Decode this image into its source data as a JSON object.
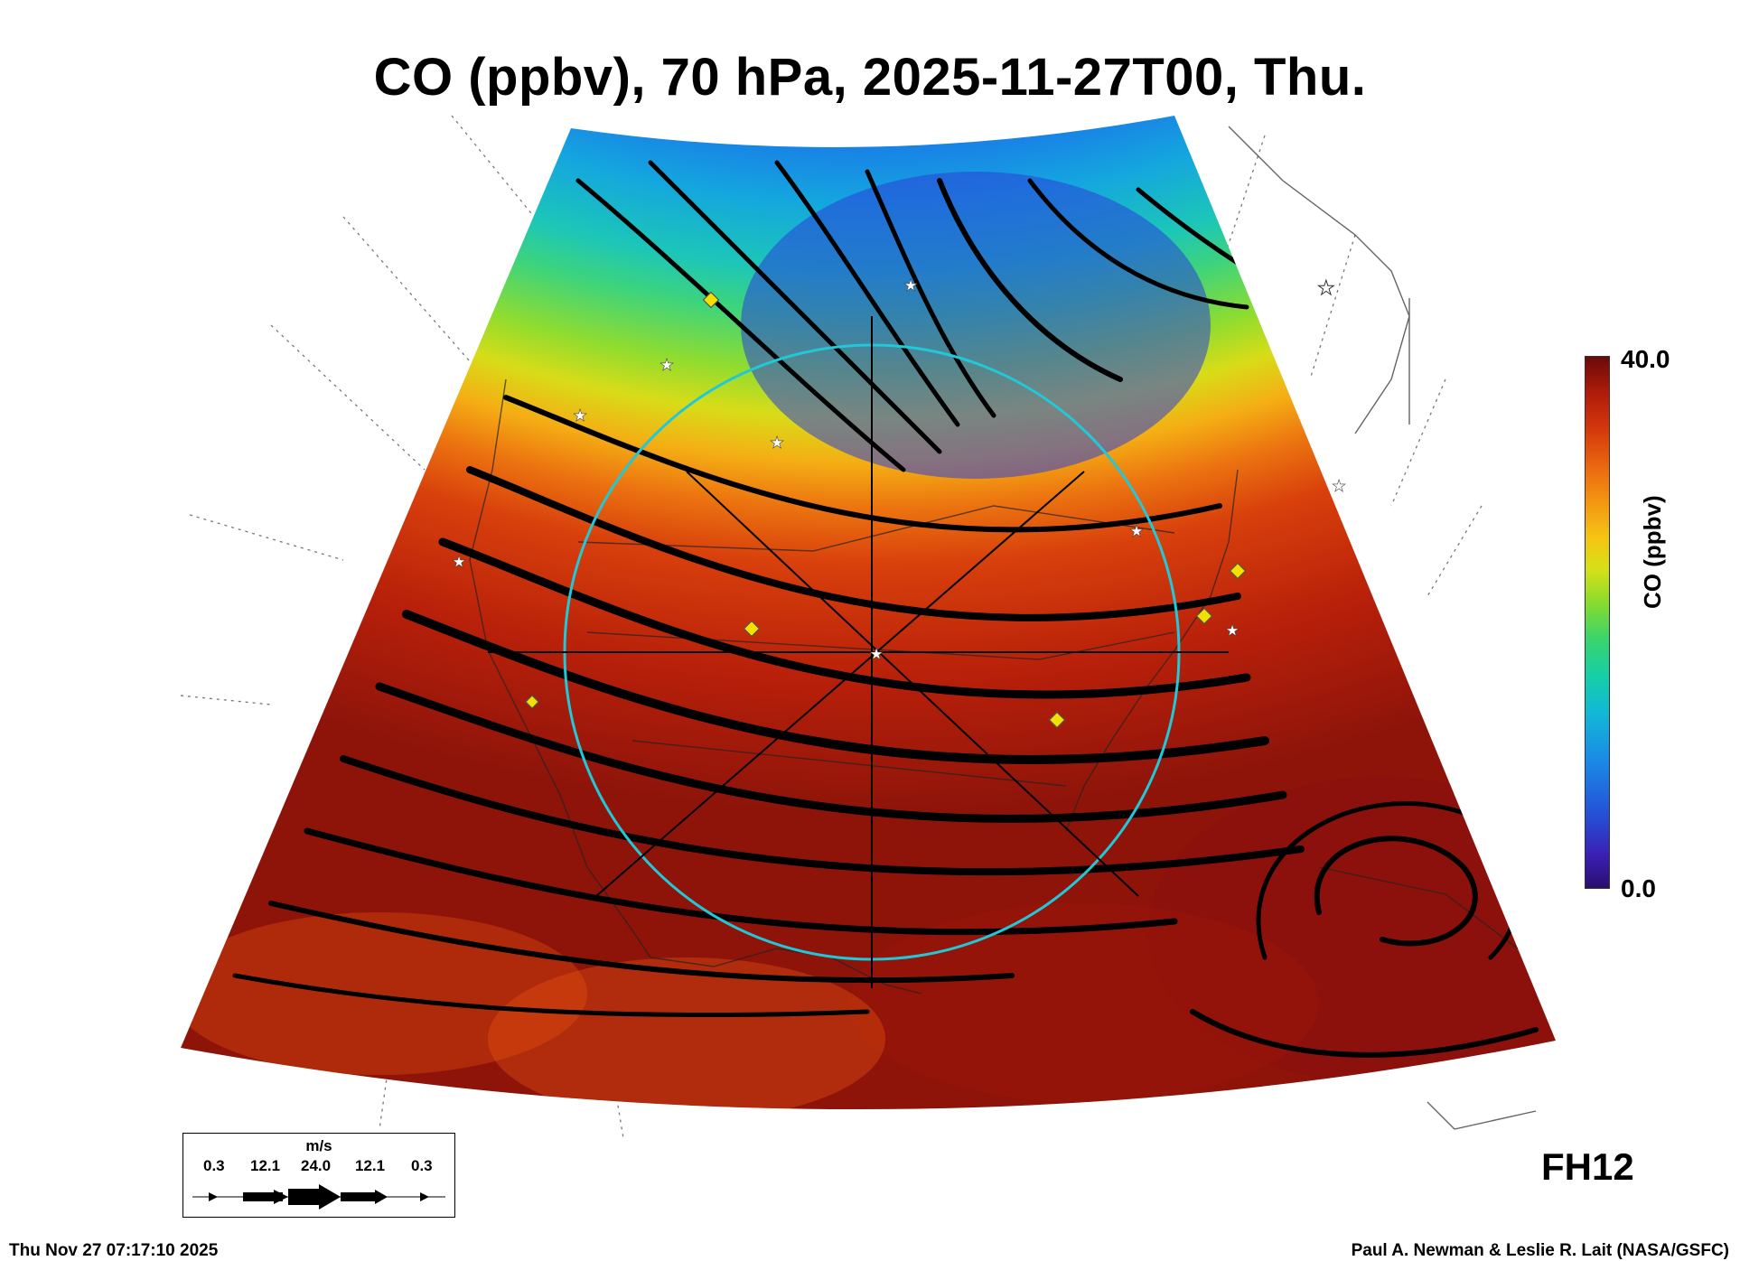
{
  "title": "CO (ppbv), 70 hPa, 2025-11-27T00, Thu.",
  "colorbar": {
    "max_label": "40.0",
    "min_label": "0.0",
    "label": "CO (ppbv)",
    "colors": [
      "#2a0e6e",
      "#2451d8",
      "#12b8d6",
      "#3bd46a",
      "#d6e018",
      "#f49a12",
      "#d63a0c",
      "#6a0a0a"
    ]
  },
  "wind_legend": {
    "units": "m/s",
    "values": [
      "0.3",
      "12.1",
      "24.0",
      "12.1",
      "0.3"
    ]
  },
  "forecast_hour": "FH12",
  "timestamp": "Thu Nov 27 07:17:10 2025",
  "credit": "Paul A. Newman & Leslie R. Lait (NASA/GSFC)",
  "map": {
    "projection": "conic sector over North America",
    "field": "CO mixing ratio",
    "markers": {
      "white_star": "station-star",
      "yellow_diamond": "station-diamond"
    },
    "overlay": "cyan circle with crosshair centred on US"
  }
}
